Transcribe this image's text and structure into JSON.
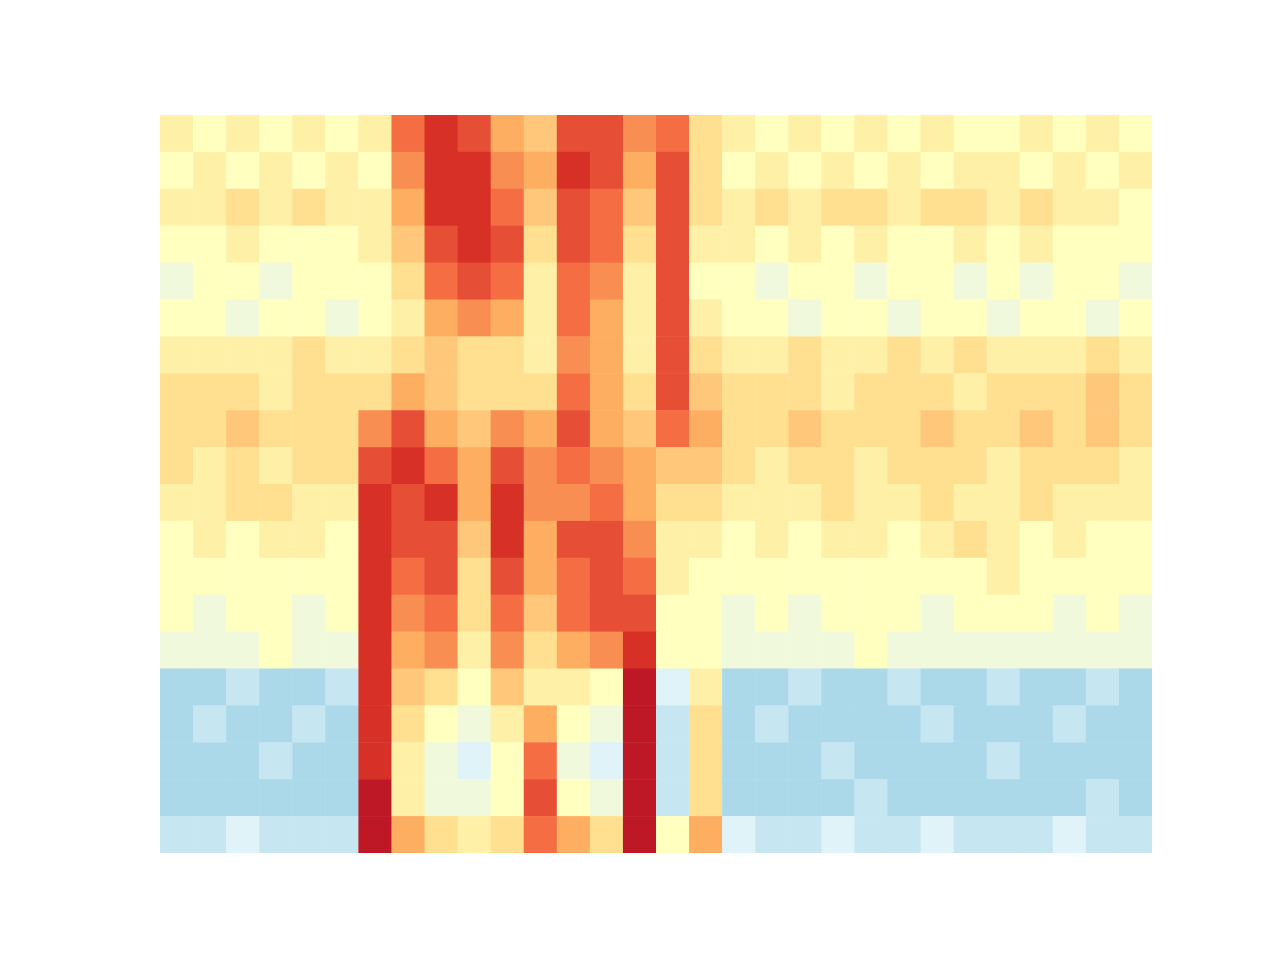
{
  "chart_data": {
    "type": "heatmap",
    "tick_labels": false,
    "grid": false,
    "color_range": [
      0,
      1
    ],
    "cells": [
      [
        0.55,
        0.5,
        0.55,
        0.5,
        0.55,
        0.5,
        0.55,
        0.8,
        0.9,
        0.85,
        0.7,
        0.65,
        0.85,
        0.85,
        0.75,
        0.8,
        0.6,
        0.55,
        0.5,
        0.55,
        0.5,
        0.55,
        0.5,
        0.55,
        0.5,
        0.5,
        0.55,
        0.5,
        0.55,
        0.5
      ],
      [
        0.5,
        0.55,
        0.5,
        0.55,
        0.5,
        0.55,
        0.5,
        0.75,
        0.9,
        0.9,
        0.75,
        0.7,
        0.9,
        0.85,
        0.7,
        0.85,
        0.6,
        0.5,
        0.55,
        0.5,
        0.55,
        0.5,
        0.55,
        0.5,
        0.55,
        0.55,
        0.5,
        0.55,
        0.5,
        0.55
      ],
      [
        0.55,
        0.55,
        0.6,
        0.55,
        0.6,
        0.55,
        0.55,
        0.7,
        0.9,
        0.9,
        0.8,
        0.65,
        0.85,
        0.8,
        0.65,
        0.85,
        0.6,
        0.55,
        0.6,
        0.55,
        0.6,
        0.6,
        0.55,
        0.6,
        0.6,
        0.55,
        0.6,
        0.55,
        0.55,
        0.5
      ],
      [
        0.5,
        0.5,
        0.55,
        0.5,
        0.5,
        0.5,
        0.55,
        0.65,
        0.85,
        0.9,
        0.85,
        0.6,
        0.85,
        0.8,
        0.6,
        0.85,
        0.55,
        0.55,
        0.5,
        0.55,
        0.5,
        0.55,
        0.5,
        0.5,
        0.55,
        0.5,
        0.55,
        0.5,
        0.5,
        0.5
      ],
      [
        0.45,
        0.5,
        0.5,
        0.45,
        0.5,
        0.5,
        0.5,
        0.6,
        0.8,
        0.85,
        0.8,
        0.55,
        0.8,
        0.75,
        0.55,
        0.85,
        0.5,
        0.5,
        0.45,
        0.5,
        0.5,
        0.45,
        0.5,
        0.5,
        0.45,
        0.5,
        0.45,
        0.5,
        0.5,
        0.45
      ],
      [
        0.5,
        0.5,
        0.45,
        0.5,
        0.5,
        0.45,
        0.5,
        0.55,
        0.7,
        0.75,
        0.7,
        0.55,
        0.8,
        0.7,
        0.55,
        0.85,
        0.55,
        0.5,
        0.5,
        0.45,
        0.5,
        0.5,
        0.45,
        0.5,
        0.5,
        0.45,
        0.5,
        0.5,
        0.45,
        0.5
      ],
      [
        0.55,
        0.55,
        0.55,
        0.55,
        0.6,
        0.55,
        0.55,
        0.6,
        0.65,
        0.6,
        0.6,
        0.55,
        0.75,
        0.7,
        0.55,
        0.85,
        0.6,
        0.55,
        0.55,
        0.6,
        0.55,
        0.55,
        0.6,
        0.55,
        0.6,
        0.55,
        0.55,
        0.55,
        0.6,
        0.55
      ],
      [
        0.6,
        0.6,
        0.6,
        0.55,
        0.6,
        0.6,
        0.6,
        0.7,
        0.65,
        0.6,
        0.6,
        0.6,
        0.8,
        0.7,
        0.6,
        0.85,
        0.65,
        0.6,
        0.6,
        0.6,
        0.55,
        0.6,
        0.6,
        0.6,
        0.55,
        0.6,
        0.6,
        0.6,
        0.65,
        0.6
      ],
      [
        0.6,
        0.6,
        0.65,
        0.6,
        0.6,
        0.6,
        0.75,
        0.85,
        0.7,
        0.65,
        0.75,
        0.7,
        0.85,
        0.7,
        0.65,
        0.8,
        0.7,
        0.6,
        0.6,
        0.65,
        0.6,
        0.6,
        0.6,
        0.65,
        0.6,
        0.6,
        0.65,
        0.6,
        0.65,
        0.6
      ],
      [
        0.6,
        0.55,
        0.6,
        0.55,
        0.6,
        0.6,
        0.85,
        0.9,
        0.8,
        0.7,
        0.85,
        0.75,
        0.8,
        0.75,
        0.7,
        0.65,
        0.65,
        0.6,
        0.55,
        0.6,
        0.6,
        0.55,
        0.6,
        0.6,
        0.6,
        0.55,
        0.6,
        0.6,
        0.6,
        0.55
      ],
      [
        0.55,
        0.55,
        0.6,
        0.6,
        0.55,
        0.55,
        0.9,
        0.85,
        0.9,
        0.7,
        0.9,
        0.75,
        0.75,
        0.8,
        0.7,
        0.6,
        0.6,
        0.55,
        0.55,
        0.55,
        0.6,
        0.55,
        0.55,
        0.6,
        0.55,
        0.55,
        0.6,
        0.55,
        0.55,
        0.55
      ],
      [
        0.5,
        0.55,
        0.5,
        0.55,
        0.55,
        0.5,
        0.9,
        0.85,
        0.85,
        0.65,
        0.9,
        0.7,
        0.85,
        0.85,
        0.75,
        0.55,
        0.55,
        0.5,
        0.55,
        0.5,
        0.55,
        0.55,
        0.5,
        0.55,
        0.6,
        0.55,
        0.5,
        0.55,
        0.5,
        0.5
      ],
      [
        0.5,
        0.5,
        0.5,
        0.5,
        0.5,
        0.5,
        0.9,
        0.8,
        0.85,
        0.6,
        0.85,
        0.7,
        0.8,
        0.85,
        0.8,
        0.55,
        0.5,
        0.5,
        0.5,
        0.5,
        0.5,
        0.5,
        0.5,
        0.5,
        0.5,
        0.55,
        0.5,
        0.5,
        0.5,
        0.5
      ],
      [
        0.5,
        0.45,
        0.5,
        0.5,
        0.45,
        0.5,
        0.9,
        0.75,
        0.8,
        0.6,
        0.8,
        0.65,
        0.8,
        0.85,
        0.85,
        0.5,
        0.5,
        0.45,
        0.5,
        0.45,
        0.5,
        0.5,
        0.5,
        0.45,
        0.5,
        0.5,
        0.5,
        0.45,
        0.5,
        0.45
      ],
      [
        0.45,
        0.45,
        0.45,
        0.5,
        0.45,
        0.45,
        0.9,
        0.7,
        0.75,
        0.55,
        0.75,
        0.6,
        0.7,
        0.75,
        0.9,
        0.5,
        0.5,
        0.45,
        0.45,
        0.45,
        0.45,
        0.5,
        0.45,
        0.45,
        0.45,
        0.45,
        0.45,
        0.45,
        0.45,
        0.45
      ],
      [
        0.3,
        0.3,
        0.35,
        0.3,
        0.3,
        0.35,
        0.9,
        0.65,
        0.6,
        0.5,
        0.65,
        0.55,
        0.55,
        0.5,
        0.95,
        0.4,
        0.55,
        0.3,
        0.3,
        0.35,
        0.3,
        0.3,
        0.35,
        0.3,
        0.3,
        0.35,
        0.3,
        0.3,
        0.35,
        0.3
      ],
      [
        0.3,
        0.35,
        0.3,
        0.3,
        0.35,
        0.3,
        0.9,
        0.6,
        0.5,
        0.45,
        0.55,
        0.7,
        0.5,
        0.45,
        0.95,
        0.35,
        0.6,
        0.3,
        0.35,
        0.3,
        0.3,
        0.3,
        0.3,
        0.35,
        0.3,
        0.3,
        0.3,
        0.35,
        0.3,
        0.3
      ],
      [
        0.3,
        0.3,
        0.3,
        0.35,
        0.3,
        0.3,
        0.9,
        0.55,
        0.45,
        0.4,
        0.5,
        0.8,
        0.45,
        0.4,
        0.95,
        0.35,
        0.6,
        0.3,
        0.3,
        0.3,
        0.35,
        0.3,
        0.3,
        0.3,
        0.3,
        0.35,
        0.3,
        0.3,
        0.3,
        0.3
      ],
      [
        0.3,
        0.3,
        0.3,
        0.3,
        0.3,
        0.3,
        0.95,
        0.55,
        0.45,
        0.45,
        0.5,
        0.85,
        0.5,
        0.45,
        0.95,
        0.35,
        0.6,
        0.3,
        0.3,
        0.3,
        0.3,
        0.35,
        0.3,
        0.3,
        0.3,
        0.3,
        0.3,
        0.3,
        0.35,
        0.3
      ],
      [
        0.35,
        0.35,
        0.4,
        0.35,
        0.35,
        0.35,
        0.95,
        0.7,
        0.6,
        0.55,
        0.6,
        0.8,
        0.7,
        0.6,
        0.95,
        0.5,
        0.7,
        0.4,
        0.35,
        0.35,
        0.4,
        0.35,
        0.35,
        0.4,
        0.35,
        0.35,
        0.35,
        0.4,
        0.35,
        0.35
      ]
    ]
  }
}
